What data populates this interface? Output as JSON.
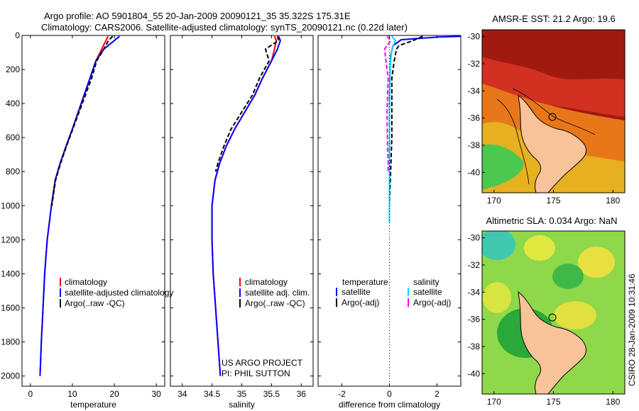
{
  "figure": {
    "title_line1": "Argo profile: AO 5901804_55 20-Jan-2009 20090121_35 35.322S 175.31E",
    "title_line2": "Climatology: CARS2006. Satellite-adjusted climatology: synTS_20090121.nc (0.22d later)",
    "project_line1": "US ARGO PROJECT",
    "project_line2": "PI: PHIL SUTTON",
    "stamp": "CSIRO 28-Jan-2009 10:31:46"
  },
  "colors": {
    "climatology": "#ff0000",
    "satellite": "#0000ff",
    "argo": "#000000",
    "salinity_satellite": "#00e0ff",
    "salinity_argo": "#ff00ff"
  },
  "chart_data": [
    {
      "type": "line",
      "name": "temperature-profile",
      "xlabel": "temperature",
      "ylabel": "",
      "xlim": [
        -2,
        32
      ],
      "ylim": [
        2060,
        0
      ],
      "xticks": [
        0,
        10,
        20,
        30
      ],
      "yticks": [
        0,
        200,
        400,
        600,
        800,
        1000,
        1200,
        1400,
        1600,
        1800,
        2000
      ],
      "legend": [
        "climatology",
        "satellite-adjusted climatology",
        "Argo(..raw -QC)"
      ],
      "series": [
        {
          "name": "climatology",
          "color": "#ff0000",
          "dash": false,
          "x": [
            18.5,
            18.0,
            17.0,
            15.6,
            14.2,
            12.8,
            11.4,
            10.0,
            8.5,
            7.1,
            5.9,
            5.0,
            4.0,
            3.4,
            3.0,
            2.6,
            2.3
          ],
          "y": [
            5,
            30,
            80,
            150,
            250,
            350,
            450,
            550,
            650,
            750,
            850,
            1000,
            1200,
            1400,
            1600,
            1800,
            2000
          ]
        },
        {
          "name": "satellite-adjusted climatology",
          "color": "#0000ff",
          "dash": false,
          "x": [
            21.2,
            20.0,
            17.5,
            15.6,
            14.2,
            12.8,
            11.4,
            10.0,
            8.5,
            7.1,
            5.9,
            5.0,
            4.0,
            3.4,
            3.0,
            2.6,
            2.3
          ],
          "y": [
            5,
            30,
            80,
            150,
            250,
            350,
            450,
            550,
            650,
            750,
            850,
            1000,
            1200,
            1400,
            1600,
            1800,
            2000
          ]
        },
        {
          "name": "Argo(..raw -QC)",
          "color": "#000000",
          "dash": true,
          "x": [
            19.6,
            18.6,
            17.5,
            15.8,
            14.6,
            13.1,
            11.6,
            10.1,
            8.6,
            7.2,
            6.0,
            5.1
          ],
          "y": [
            5,
            30,
            80,
            150,
            250,
            350,
            450,
            550,
            650,
            750,
            850,
            1000
          ]
        }
      ]
    },
    {
      "type": "line",
      "name": "salinity-profile",
      "xlabel": "salinity",
      "xlim": [
        33.8,
        36.2
      ],
      "ylim": [
        2060,
        0
      ],
      "xticks": [
        34,
        34.5,
        35,
        35.5,
        36
      ],
      "legend": [
        "climatology",
        "satellite adj. clim.",
        "Argo(..raw -QC)"
      ],
      "series": [
        {
          "name": "climatology",
          "color": "#ff0000",
          "dash": false,
          "x": [
            35.55,
            35.58,
            35.55,
            35.5,
            35.35,
            35.22,
            35.05,
            34.88,
            34.74,
            34.63,
            34.55,
            34.5,
            34.5,
            34.52,
            34.56,
            34.6,
            34.64
          ],
          "y": [
            5,
            30,
            80,
            150,
            250,
            350,
            450,
            550,
            650,
            750,
            850,
            1000,
            1200,
            1400,
            1600,
            1800,
            2000
          ]
        },
        {
          "name": "satellite adj. clim.",
          "color": "#0000ff",
          "dash": false,
          "x": [
            35.62,
            35.65,
            35.6,
            35.5,
            35.35,
            35.22,
            35.05,
            34.88,
            34.74,
            34.63,
            34.55,
            34.5,
            34.5,
            34.52,
            34.56,
            34.6,
            34.64
          ],
          "y": [
            5,
            30,
            80,
            150,
            250,
            350,
            450,
            550,
            650,
            750,
            850,
            1000,
            1200,
            1400,
            1600,
            1800,
            2000
          ]
        },
        {
          "name": "Argo(..raw -QC)",
          "color": "#000000",
          "dash": true,
          "x": [
            35.6,
            35.62,
            35.4,
            35.46,
            35.3,
            35.18,
            35.0,
            34.82,
            34.7,
            34.6,
            34.56
          ],
          "y": [
            5,
            30,
            80,
            150,
            250,
            350,
            450,
            550,
            650,
            750,
            800
          ]
        }
      ]
    },
    {
      "type": "line",
      "name": "difference-profile",
      "xlabel": "difference from climatology",
      "xlim": [
        -3,
        3
      ],
      "ylim": [
        2060,
        0
      ],
      "xticks": [
        -2,
        0,
        2
      ],
      "legend_titles": [
        "temperature",
        "salinity"
      ],
      "legend": [
        "satellite",
        "Argo(-adj)",
        "satellite",
        "Argo(-adj)"
      ],
      "series": [
        {
          "name": "temperature satellite",
          "color": "#0000ff",
          "dash": false,
          "x": [
            3.0,
            2.0,
            0.5,
            0.15,
            0.05,
            0.02,
            0.0,
            0.0,
            0.0,
            0.0,
            0.0
          ],
          "y": [
            5,
            10,
            25,
            60,
            120,
            250,
            400,
            600,
            800,
            1000,
            1100
          ]
        },
        {
          "name": "temperature Argo(-adj)",
          "color": "#000000",
          "dash": true,
          "x": [
            1.4,
            1.0,
            0.4,
            0.3,
            0.2,
            0.1,
            0.1,
            0.1,
            0.05,
            0.0,
            0.0
          ],
          "y": [
            5,
            30,
            60,
            80,
            150,
            250,
            400,
            600,
            800,
            1000,
            1100
          ]
        },
        {
          "name": "salinity satellite",
          "color": "#00e0ff",
          "dash": false,
          "x": [
            0.1,
            0.25,
            0.1,
            0.05,
            0.02,
            0.0,
            0.0,
            0.0,
            0.0
          ],
          "y": [
            5,
            30,
            80,
            150,
            250,
            450,
            700,
            900,
            1100
          ]
        },
        {
          "name": "salinity Argo(-adj)",
          "color": "#ff00ff",
          "dash": true,
          "x": [
            -0.1,
            0.05,
            -0.2,
            -0.15,
            -0.05,
            -0.1,
            -0.08,
            -0.05,
            -0.05
          ],
          "y": [
            5,
            30,
            80,
            150,
            250,
            450,
            650,
            750,
            800
          ]
        }
      ]
    },
    {
      "type": "heatmap",
      "name": "sst-map",
      "title": "AMSR-E SST: 21.2 Argo: 19.6",
      "xlim": [
        169,
        181
      ],
      "ylim": [
        -41.5,
        -29.5
      ],
      "xticks": [
        170,
        175,
        180
      ],
      "yticks": [
        -30,
        -32,
        -34,
        -36,
        -38,
        -40
      ]
    },
    {
      "type": "heatmap",
      "name": "sla-map",
      "title": "Altimetric SLA: 0.034 Argo: NaN",
      "xlim": [
        169,
        181
      ],
      "ylim": [
        -41.5,
        -29.5
      ],
      "xticks": [
        170,
        175,
        180
      ],
      "yticks": [
        -30,
        -32,
        -34,
        -36,
        -38,
        -40
      ]
    }
  ]
}
